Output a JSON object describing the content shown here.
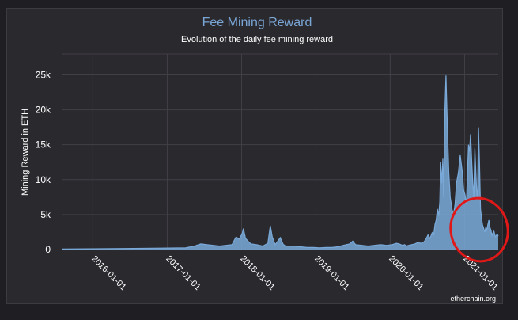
{
  "chart_data": {
    "type": "area",
    "title": "Fee Mining Reward",
    "subtitle": "Evolution of the daily fee mining reward",
    "ylabel": "Mining Reward in ETH",
    "xlabel": "",
    "ylim": [
      0,
      28000
    ],
    "yticks": [
      0,
      5000,
      10000,
      15000,
      20000,
      25000
    ],
    "ytick_labels": [
      "0",
      "5k",
      "10k",
      "15k",
      "20k",
      "25k"
    ],
    "xtick_labels": [
      "2016-01-01",
      "2017-01-01",
      "2018-01-01",
      "2019-01-01",
      "2020-01-01",
      "2021-01-01"
    ],
    "xlim": [
      "2015-08-01",
      "2021-06-15"
    ],
    "grid": true,
    "series": [
      {
        "color": "#7aaad9",
        "x": [
          "2015-08-01",
          "2015-12-01",
          "2016-06-01",
          "2016-12-01",
          "2017-04-01",
          "2017-05-15",
          "2017-06-15",
          "2017-07-15",
          "2017-08-15",
          "2017-09-15",
          "2017-10-15",
          "2017-11-15",
          "2017-12-05",
          "2017-12-20",
          "2018-01-03",
          "2018-01-10",
          "2018-01-20",
          "2018-02-15",
          "2018-03-15",
          "2018-04-15",
          "2018-05-10",
          "2018-05-22",
          "2018-06-01",
          "2018-06-15",
          "2018-07-10",
          "2018-07-25",
          "2018-08-10",
          "2018-09-15",
          "2018-10-15",
          "2018-11-20",
          "2018-12-20",
          "2019-01-20",
          "2019-02-20",
          "2019-03-20",
          "2019-04-20",
          "2019-05-15",
          "2019-06-15",
          "2019-07-01",
          "2019-07-15",
          "2019-08-15",
          "2019-09-15",
          "2019-10-15",
          "2019-11-15",
          "2019-12-15",
          "2020-01-10",
          "2020-02-01",
          "2020-02-15",
          "2020-03-01",
          "2020-03-12",
          "2020-03-20",
          "2020-04-01",
          "2020-04-15",
          "2020-05-01",
          "2020-05-15",
          "2020-06-01",
          "2020-06-15",
          "2020-06-25",
          "2020-07-05",
          "2020-07-15",
          "2020-07-25",
          "2020-08-02",
          "2020-08-08",
          "2020-08-14",
          "2020-08-20",
          "2020-08-26",
          "2020-09-01",
          "2020-09-05",
          "2020-09-10",
          "2020-09-16",
          "2020-09-20",
          "2020-09-25",
          "2020-10-01",
          "2020-10-08",
          "2020-10-15",
          "2020-10-22",
          "2020-11-01",
          "2020-11-08",
          "2020-11-15",
          "2020-11-22",
          "2020-12-01",
          "2020-12-10",
          "2020-12-20",
          "2020-12-27",
          "2021-01-03",
          "2021-01-07",
          "2021-01-11",
          "2021-01-15",
          "2021-01-20",
          "2021-01-25",
          "2021-01-30",
          "2021-02-05",
          "2021-02-10",
          "2021-02-15",
          "2021-02-20",
          "2021-02-25",
          "2021-03-01",
          "2021-03-05",
          "2021-03-10",
          "2021-03-15",
          "2021-03-20",
          "2021-03-25",
          "2021-03-30",
          "2021-04-05",
          "2021-04-10",
          "2021-04-15",
          "2021-04-20",
          "2021-04-25",
          "2021-04-30",
          "2021-05-05",
          "2021-05-10",
          "2021-05-15",
          "2021-05-20",
          "2021-05-25",
          "2021-06-01",
          "2021-06-10",
          "2021-06-15"
        ],
        "y": [
          80,
          100,
          150,
          200,
          250,
          500,
          800,
          700,
          600,
          500,
          600,
          700,
          1800,
          1500,
          2200,
          3000,
          1600,
          800,
          700,
          500,
          900,
          3400,
          1800,
          700,
          1700,
          700,
          500,
          500,
          400,
          300,
          300,
          250,
          300,
          300,
          400,
          600,
          800,
          1200,
          700,
          600,
          500,
          600,
          700,
          600,
          700,
          900,
          800,
          600,
          700,
          500,
          600,
          700,
          800,
          1000,
          900,
          1100,
          1500,
          2100,
          1600,
          2400,
          2100,
          3600,
          4200,
          5800,
          4800,
          6800,
          12500,
          9500,
          13000,
          7500,
          19000,
          24900,
          17500,
          11000,
          7500,
          5600,
          5100,
          6500,
          9500,
          11000,
          13500,
          11200,
          8500,
          7800,
          6500,
          7500,
          11000,
          15000,
          14000,
          16500,
          12500,
          9500,
          7500,
          14500,
          11000,
          8500,
          7000,
          17500,
          12500,
          5800,
          4500,
          3500,
          3000,
          2500,
          3200,
          2800,
          3600,
          4200,
          3200,
          2800,
          2000,
          2400,
          2600,
          1800,
          2200,
          1900
        ]
      }
    ]
  },
  "annotation": {
    "shape": "ellipse",
    "color": "#e01818"
  },
  "credit": "etherchain.org"
}
